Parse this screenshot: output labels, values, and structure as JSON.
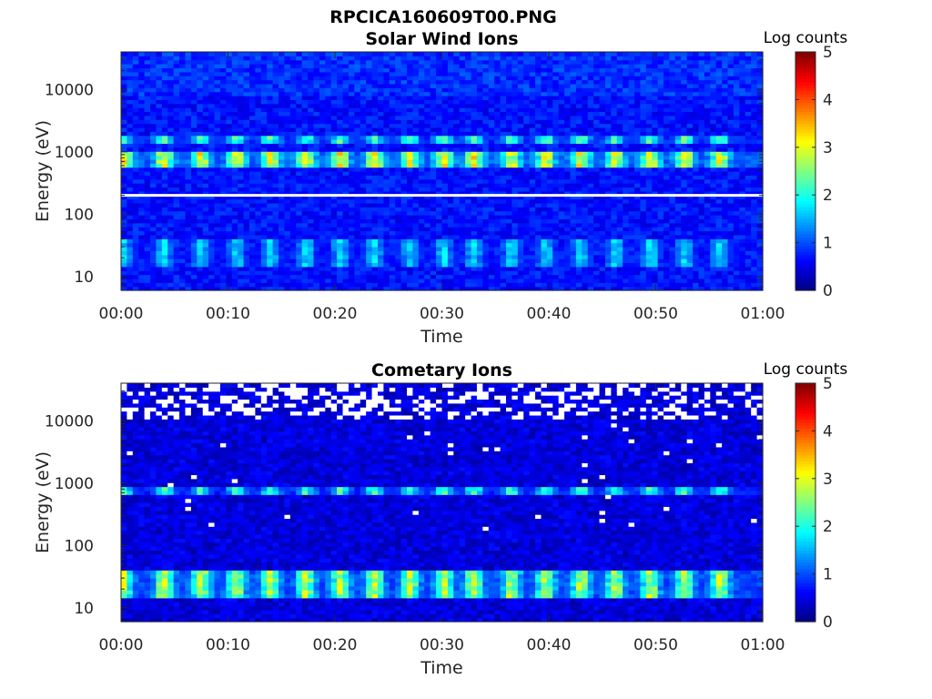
{
  "figure": {
    "title": "RPCICA160609T00.PNG"
  },
  "chart_data": [
    {
      "type": "heatmap",
      "title": "Solar Wind Ions",
      "xlabel": "Time",
      "ylabel": "Energy (eV)",
      "x_ticks": [
        "00:00",
        "00:10",
        "00:20",
        "00:30",
        "00:40",
        "00:50",
        "01:00"
      ],
      "x_range": [
        "00:00",
        "01:00"
      ],
      "y_scale": "log",
      "y_ticks": [
        10,
        100,
        1000,
        10000
      ],
      "y_tick_labels": [
        "10",
        "100",
        "1000",
        "10000"
      ],
      "y_range": [
        6,
        40000
      ],
      "colorbar": {
        "label": "Log counts",
        "range": [
          0,
          5
        ],
        "ticks": [
          "0",
          "1",
          "2",
          "3",
          "4",
          "5"
        ],
        "colormap": "jet"
      },
      "marker_line": {
        "energy_ev": 200,
        "color": "#ffffff"
      },
      "pulse_times_min": [
        0.2,
        4,
        7.5,
        10.8,
        14,
        17.3,
        20.5,
        23.7,
        27,
        30.2,
        33,
        36.5,
        39.7,
        43,
        46.2,
        49.5,
        52.7,
        56
      ],
      "bands": [
        {
          "e_low": 600,
          "e_high": 950,
          "peak_log_counts": 3.1,
          "description_level": "pulses"
        },
        {
          "e_low": 1400,
          "e_high": 1800,
          "peak_log_counts": 2.3,
          "description_level": "pulses"
        },
        {
          "e_low": 15,
          "e_high": 40,
          "peak_log_counts": 1.7,
          "description_level": "pulses"
        }
      ],
      "background_log_counts": 0.7
    },
    {
      "type": "heatmap",
      "title": "Cometary Ions",
      "xlabel": "Time",
      "ylabel": "Energy (eV)",
      "x_ticks": [
        "00:00",
        "00:10",
        "00:20",
        "00:30",
        "00:40",
        "00:50",
        "01:00"
      ],
      "x_range": [
        "00:00",
        "01:00"
      ],
      "y_scale": "log",
      "y_ticks": [
        10,
        100,
        1000,
        10000
      ],
      "y_tick_labels": [
        "10",
        "100",
        "1000",
        "10000"
      ],
      "y_range": [
        6,
        40000
      ],
      "colorbar": {
        "label": "Log counts",
        "range": [
          0,
          5
        ],
        "ticks": [
          "0",
          "1",
          "2",
          "3",
          "4",
          "5"
        ],
        "colormap": "jet"
      },
      "pulse_times_min": [
        0.2,
        4,
        7.5,
        10.8,
        14,
        17.3,
        20.5,
        23.7,
        27,
        30.2,
        33,
        36.5,
        39.7,
        43,
        46.2,
        49.5,
        52.7,
        56
      ],
      "bands": [
        {
          "e_low": 700,
          "e_high": 900,
          "peak_log_counts": 2.2,
          "description_level": "pulses"
        },
        {
          "e_low": 15,
          "e_high": 40,
          "peak_log_counts": 2.8,
          "description_level": "pulses"
        }
      ],
      "background_log_counts": 0.45,
      "missing_data_region": {
        "e_low": 10000,
        "e_high": 40000
      }
    }
  ]
}
